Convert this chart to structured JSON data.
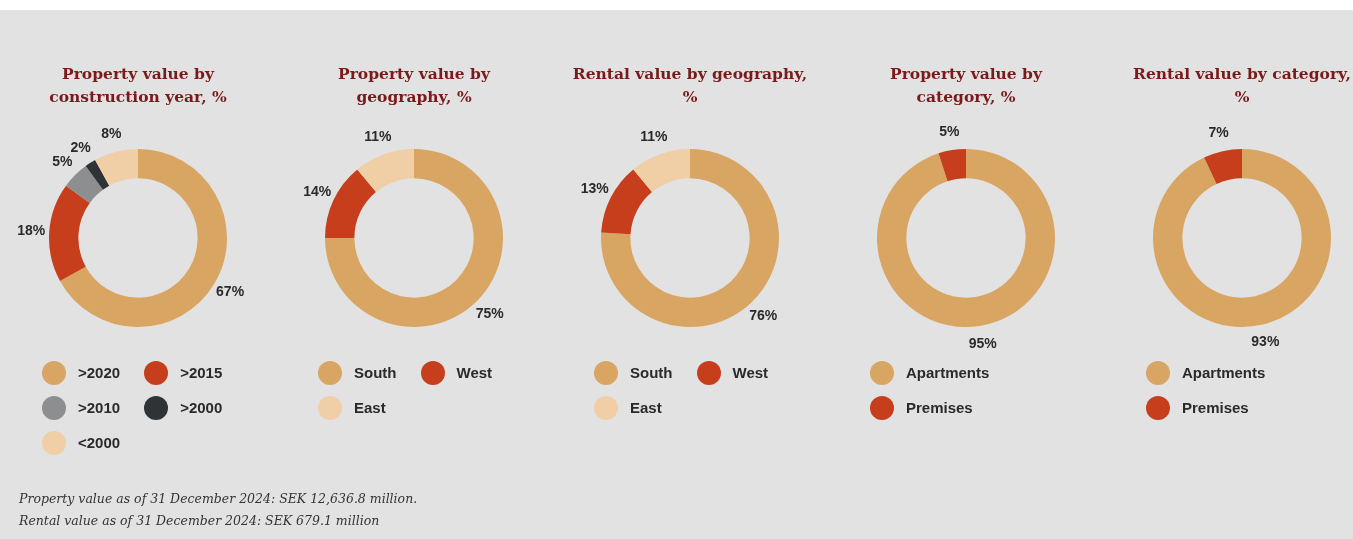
{
  "chart_data": [
    {
      "type": "donut",
      "title": "Property value by construction year, %",
      "categories": [
        ">2020",
        ">2015",
        ">2010",
        ">2000",
        "<2000"
      ],
      "values": [
        67,
        18,
        5,
        2,
        8
      ],
      "colors": [
        "#d9a563",
        "#c63e1c",
        "#8c8e8f",
        "#2f3336",
        "#f0cea6"
      ],
      "value_labels": [
        "67%",
        "18%",
        "5%",
        "2%",
        "8%"
      ],
      "legend": "bottom",
      "annotations": [
        "Property value as of 31 December 2024: SEK 12,636.8 million.",
        "Rental value as of 31 December 2024: SEK 679.1 million"
      ]
    },
    {
      "type": "donut",
      "title": "Property value by geography, %",
      "categories": [
        "South",
        "West",
        "East"
      ],
      "values": [
        75,
        14,
        11
      ],
      "colors": [
        "#d9a563",
        "#c63e1c",
        "#f0cea6"
      ],
      "value_labels": [
        "75%",
        "14%",
        "11%"
      ],
      "legend": "bottom"
    },
    {
      "type": "donut",
      "title": "Rental value by geography, %",
      "categories": [
        "South",
        "West",
        "East"
      ],
      "values": [
        76,
        13,
        11
      ],
      "colors": [
        "#d9a563",
        "#c63e1c",
        "#f0cea6"
      ],
      "value_labels": [
        "76%",
        "13%",
        "11%"
      ],
      "legend": "bottom"
    },
    {
      "type": "donut",
      "title": "Property value by category, %",
      "categories": [
        "Apartments",
        "Premises"
      ],
      "values": [
        95,
        5
      ],
      "colors": [
        "#d9a563",
        "#c63e1c"
      ],
      "value_labels": [
        "95%",
        "5%"
      ],
      "legend": "bottom"
    },
    {
      "type": "donut",
      "title": "Rental value by category, %",
      "categories": [
        "Apartments",
        "Premises"
      ],
      "values": [
        93,
        7
      ],
      "colors": [
        "#d9a563",
        "#c63e1c"
      ],
      "value_labels": [
        "93%",
        "7%"
      ],
      "legend": "bottom"
    }
  ]
}
